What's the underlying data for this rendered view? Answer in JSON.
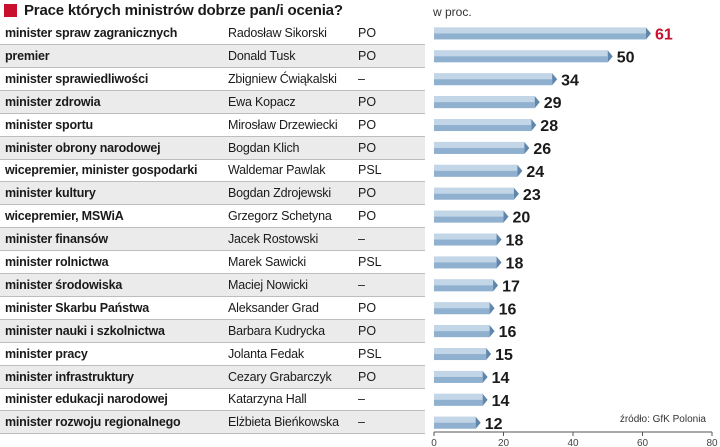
{
  "title": "Prace których ministrów dobrze pan/i ocenia?",
  "unit": "w proc.",
  "source": "źródło: GfK Polonia",
  "colors": {
    "accent": "#c8102e",
    "bar": "#8fb1cf",
    "bar_light": "#d4e3f0",
    "bar_dark": "#5f86ab"
  },
  "rows": [
    {
      "role": "minister spraw zagranicznych",
      "person": "Radosław Sikorski",
      "party": "PO"
    },
    {
      "role": "premier",
      "person": "Donald Tusk",
      "party": "PO"
    },
    {
      "role": "minister sprawiedliwości",
      "person": "Zbigniew Ćwiąkalski",
      "party": "–"
    },
    {
      "role": "minister zdrowia",
      "person": "Ewa Kopacz",
      "party": "PO"
    },
    {
      "role": "minister sportu",
      "person": "Mirosław Drzewiecki",
      "party": "PO"
    },
    {
      "role": "minister obrony narodowej",
      "person": "Bogdan Klich",
      "party": "PO"
    },
    {
      "role": "wicepremier, minister gospodarki",
      "person": "Waldemar Pawlak",
      "party": "PSL"
    },
    {
      "role": "minister kultury",
      "person": "Bogdan Zdrojewski",
      "party": "PO"
    },
    {
      "role": "wicepremier, MSWiA",
      "person": "Grzegorz Schetyna",
      "party": "PO"
    },
    {
      "role": "minister finansów",
      "person": "Jacek Rostowski",
      "party": "–"
    },
    {
      "role": "minister rolnictwa",
      "person": "Marek Sawicki",
      "party": "PSL"
    },
    {
      "role": "minister środowiska",
      "person": "Maciej Nowicki",
      "party": "–"
    },
    {
      "role": "minister Skarbu Państwa",
      "person": "Aleksander Grad",
      "party": "PO"
    },
    {
      "role": "minister nauki i szkolnictwa",
      "person": "Barbara Kudrycka",
      "party": "PO"
    },
    {
      "role": "minister pracy",
      "person": "Jolanta Fedak",
      "party": "PSL"
    },
    {
      "role": "minister infrastruktury",
      "person": "Cezary Grabarczyk",
      "party": "PO"
    },
    {
      "role": "minister edukacji narodowej",
      "person": "Katarzyna Hall",
      "party": "–"
    },
    {
      "role": "minister rozwoju regionalnego",
      "person": "Elżbieta Bieńkowska",
      "party": "–"
    }
  ],
  "chart_data": {
    "type": "bar",
    "orientation": "horizontal",
    "categories": [
      "minister spraw zagranicznych",
      "premier",
      "minister sprawiedliwości",
      "minister zdrowia",
      "minister sportu",
      "minister obrony narodowej",
      "wicepremier, minister gospodarki",
      "minister kultury",
      "wicepremier, MSWiA",
      "minister finansów",
      "minister rolnictwa",
      "minister środowiska",
      "minister Skarbu Państwa",
      "minister nauki i szkolnictwa",
      "minister pracy",
      "minister infrastruktury",
      "minister edukacji narodowej",
      "minister rozwoju regionalnego"
    ],
    "values": [
      61,
      50,
      34,
      29,
      28,
      26,
      24,
      23,
      20,
      18,
      18,
      17,
      16,
      16,
      15,
      14,
      14,
      12
    ],
    "highlight_index": 0,
    "title": "Prace których ministrów dobrze pan/i ocenia?",
    "xlabel": "w proc.",
    "ylabel": "",
    "xlim": [
      0,
      80
    ],
    "xticks": [
      0,
      20,
      40,
      60,
      80
    ],
    "grid": false,
    "legend": "none"
  }
}
